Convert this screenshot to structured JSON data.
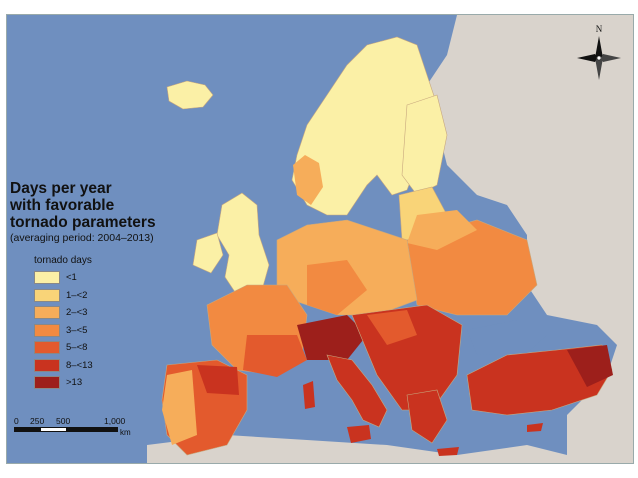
{
  "title_lines": [
    "Days per year",
    "with favorable",
    "tornado parameters"
  ],
  "subtitle": "(averaging period: 2004–2013)",
  "legend": {
    "heading": "tornado days",
    "items": [
      {
        "label": "<1",
        "color": "#fbf0a6"
      },
      {
        "label": "1–<2",
        "color": "#f9d478"
      },
      {
        "label": "2–<3",
        "color": "#f6ad5a"
      },
      {
        "label": "3–<5",
        "color": "#f28a41"
      },
      {
        "label": "5–<8",
        "color": "#e35a2d"
      },
      {
        "label": "8–<13",
        "color": "#c9331f"
      },
      {
        "label": ">13",
        "color": "#9d1f1b"
      }
    ]
  },
  "scale": {
    "labels": [
      "0",
      "250",
      "500",
      "1,000"
    ],
    "unit": "km"
  },
  "compass": {
    "label": "N"
  },
  "colors": {
    "sea": "#6f8fbf",
    "non_data_land": "#d9d3cc",
    "boundary": "#c8a87e"
  }
}
